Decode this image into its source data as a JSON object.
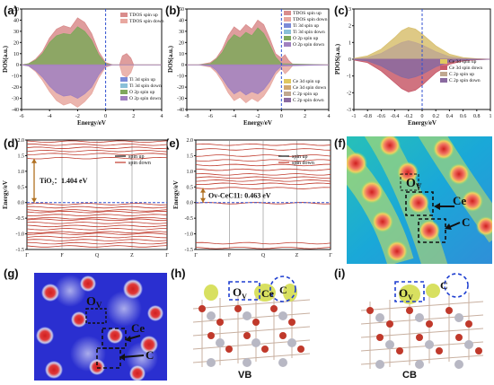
{
  "panels": {
    "a": "(a)",
    "b": "(b)",
    "c": "(c)",
    "d": "(d)",
    "e": "(e)",
    "f": "(f)",
    "g": "(g)",
    "h": "(h)",
    "i": "(i)"
  },
  "chart_data": [
    {
      "id": "a",
      "type": "area",
      "xlabel": "Energy/eV",
      "ylabel": "DOS(a.u.)",
      "xlim": [
        -6,
        4
      ],
      "ylim": [
        -40,
        50
      ],
      "xticks": [
        -6,
        -4,
        -2,
        0,
        2,
        4
      ],
      "yticks": [
        -40,
        -30,
        -20,
        -10,
        0,
        10,
        20,
        30,
        40,
        50
      ],
      "fermi": 0,
      "legend_top": [
        "TDOS spin up",
        "TDOS spin down"
      ],
      "legend_bottom": [
        "Ti 3d spin up",
        "Ti 3d spin down",
        "O 2p spin up",
        "O 2p spin down"
      ],
      "series": [
        {
          "name": "TDOS spin up",
          "color": "#d98c8c",
          "x": [
            -6,
            -5.5,
            -5,
            -4.5,
            -4,
            -3.5,
            -3,
            -2.5,
            -2,
            -1.5,
            -1,
            -0.5,
            0,
            0.5,
            1,
            1.2,
            1.5,
            1.8,
            2,
            2.5,
            3,
            3.5,
            4
          ],
          "y": [
            0,
            1,
            5,
            12,
            24,
            32,
            35,
            33,
            42,
            38,
            28,
            12,
            2,
            0,
            0,
            8,
            10,
            6,
            0,
            0,
            0,
            0,
            0
          ]
        },
        {
          "name": "O 2p spin up",
          "color": "#7fa85c",
          "x": [
            -6,
            -5.5,
            -5,
            -4.5,
            -4,
            -3.5,
            -3,
            -2.5,
            -2,
            -1.5,
            -1,
            -0.5,
            0,
            0.5,
            1,
            4
          ],
          "y": [
            0,
            1,
            4,
            10,
            20,
            26,
            28,
            27,
            34,
            30,
            22,
            9,
            1,
            0,
            0,
            0
          ]
        },
        {
          "name": "TDOS spin down",
          "color": "#e8a8a0",
          "x": [
            -6,
            -5.5,
            -5,
            -4.5,
            -4,
            -3.5,
            -3,
            -2.5,
            -2,
            -1.5,
            -1,
            -0.5,
            0,
            0.5,
            1,
            1.2,
            1.5,
            1.8,
            2,
            2.5,
            3,
            3.5,
            4
          ],
          "y": [
            0,
            -1,
            -6,
            -14,
            -24,
            -32,
            -36,
            -34,
            -38,
            -33,
            -26,
            -12,
            -2,
            0,
            0,
            -9,
            -11,
            -7,
            0,
            0,
            0,
            0,
            0
          ]
        },
        {
          "name": "O 2p spin down",
          "color": "#a080c0",
          "x": [
            -6,
            -5.5,
            -5,
            -4.5,
            -4,
            -3.5,
            -3,
            -2.5,
            -2,
            -1.5,
            -1,
            -0.5,
            0,
            0.5,
            1,
            4
          ],
          "y": [
            0,
            -1,
            -5,
            -11,
            -19,
            -25,
            -28,
            -27,
            -30,
            -26,
            -20,
            -9,
            -1,
            0,
            0,
            0
          ]
        }
      ]
    },
    {
      "id": "b",
      "type": "area",
      "xlabel": "Energy/eV",
      "ylabel": "DOS(a.u.)",
      "xlim": [
        -8,
        4
      ],
      "ylim": [
        -40,
        50
      ],
      "xticks": [
        -8,
        -6,
        -4,
        -2,
        0,
        2,
        4
      ],
      "yticks": [
        -40,
        -30,
        -20,
        -10,
        0,
        10,
        20,
        30,
        40,
        50
      ],
      "fermi": 0,
      "legend_top": [
        "TDOS spin up",
        "TDOS spin down",
        "Ti 3d spin up",
        "Ti 3d spin down",
        "O 2p spin up",
        "O 2p spin down"
      ],
      "legend_bottom": [
        "Ce 3d spin up",
        "Ce 3d spin down",
        "C 2p spin up",
        "C 2p spin down"
      ],
      "series": [
        {
          "name": "TDOS spin up",
          "color": "#d98c8c",
          "x": [
            -8,
            -7,
            -6,
            -5.5,
            -5,
            -4.5,
            -4,
            -3.5,
            -3,
            -2.5,
            -2,
            -1.5,
            -1,
            -0.5,
            0,
            0.3,
            0.6,
            1,
            1.5,
            2,
            4
          ],
          "y": [
            0,
            0,
            2,
            6,
            14,
            26,
            34,
            30,
            36,
            32,
            40,
            36,
            24,
            10,
            6,
            9,
            4,
            0,
            0,
            0,
            0
          ]
        },
        {
          "name": "O 2p spin up",
          "color": "#7fa85c",
          "x": [
            -8,
            -7,
            -6,
            -5.5,
            -5,
            -4.5,
            -4,
            -3.5,
            -3,
            -2.5,
            -2,
            -1.5,
            -1,
            -0.5,
            0,
            4
          ],
          "y": [
            0,
            0,
            1,
            5,
            11,
            21,
            27,
            24,
            29,
            26,
            33,
            28,
            18,
            7,
            1,
            0
          ]
        },
        {
          "name": "TDOS spin down",
          "color": "#e8a8a0",
          "x": [
            -8,
            -7,
            -6,
            -5.5,
            -5,
            -4.5,
            -4,
            -3.5,
            -3,
            -2.5,
            -2,
            -1.5,
            -1,
            -0.5,
            0,
            0.3,
            0.6,
            1,
            1.5,
            2,
            4
          ],
          "y": [
            0,
            0,
            -2,
            -7,
            -15,
            -25,
            -32,
            -29,
            -34,
            -30,
            -33,
            -28,
            -20,
            -9,
            -3,
            -8,
            -5,
            0,
            0,
            0,
            0
          ]
        },
        {
          "name": "O 2p spin down",
          "color": "#a080c0",
          "x": [
            -8,
            -7,
            -6,
            -5.5,
            -5,
            -4.5,
            -4,
            -3.5,
            -3,
            -2.5,
            -2,
            -1.5,
            -1,
            -0.5,
            0,
            4
          ],
          "y": [
            0,
            0,
            -1,
            -5,
            -12,
            -20,
            -26,
            -23,
            -27,
            -24,
            -26,
            -22,
            -15,
            -6,
            -1,
            0
          ]
        }
      ]
    },
    {
      "id": "c",
      "type": "area",
      "xlabel": "Energy/eV",
      "ylabel": "PDOS(a.u.)",
      "xlim": [
        -1.0,
        1.0
      ],
      "ylim": [
        -3,
        3
      ],
      "xticks": [
        -1.0,
        -0.8,
        -0.6,
        -0.4,
        -0.2,
        0.0,
        0.2,
        0.4,
        0.6,
        0.8,
        1.0
      ],
      "yticks": [
        -3,
        -2,
        -1,
        0,
        1,
        2,
        3
      ],
      "fermi": 0,
      "legend": [
        "Ce 3d spin up",
        "Ce 3d spin down",
        "C 2p spin up",
        "C 2p spin down"
      ],
      "series": [
        {
          "name": "Ce 3d spin up",
          "color": "#d8c070",
          "x": [
            -1,
            -0.8,
            -0.6,
            -0.4,
            -0.3,
            -0.2,
            -0.1,
            0,
            0.2,
            0.4,
            0.6,
            0.8,
            1
          ],
          "y": [
            0.05,
            0.2,
            0.6,
            1.3,
            1.7,
            1.9,
            1.8,
            1.5,
            0.8,
            0.3,
            0.1,
            0.03,
            0
          ]
        },
        {
          "name": "C 2p spin up",
          "color": "#c0a890",
          "x": [
            -1,
            -0.8,
            -0.6,
            -0.4,
            -0.3,
            -0.2,
            -0.1,
            0,
            0.2,
            0.4,
            0.6,
            0.8,
            1
          ],
          "y": [
            0.02,
            0.1,
            0.35,
            0.8,
            1.0,
            1.1,
            1.0,
            0.85,
            0.45,
            0.15,
            0.05,
            0.02,
            0
          ]
        },
        {
          "name": "Ce 3d spin down",
          "color": "#c85a6a",
          "x": [
            -1,
            -0.8,
            -0.6,
            -0.4,
            -0.3,
            -0.2,
            -0.1,
            0,
            0.2,
            0.4,
            0.6,
            0.8,
            1
          ],
          "y": [
            -0.05,
            -0.2,
            -0.7,
            -1.4,
            -1.75,
            -1.95,
            -1.85,
            -1.55,
            -0.8,
            -0.3,
            -0.1,
            -0.03,
            0
          ]
        },
        {
          "name": "C 2p spin down",
          "color": "#8a6aa0",
          "x": [
            -1,
            -0.8,
            -0.6,
            -0.4,
            -0.3,
            -0.2,
            -0.1,
            0,
            0.2,
            0.4,
            0.6,
            0.8,
            1
          ],
          "y": [
            -0.02,
            -0.1,
            -0.4,
            -0.85,
            -1.05,
            -1.15,
            -1.05,
            -0.9,
            -0.45,
            -0.15,
            -0.05,
            -0.02,
            0
          ]
        }
      ]
    },
    {
      "id": "d",
      "type": "line",
      "ylabel": "Energy/eV",
      "ylim": [
        -1.5,
        2.0
      ],
      "yticks": [
        -1.5,
        -1.0,
        -0.5,
        0.0,
        0.5,
        1.0,
        1.5,
        2.0
      ],
      "xticks": [
        "Γ",
        "F",
        "Q",
        "Z",
        "Γ"
      ],
      "legend": [
        "spin up",
        "spin down"
      ],
      "annotation": "TiO₂：1.404 eV",
      "gap": [
        0.0,
        1.404
      ],
      "valence_levels": [
        -0.05,
        -0.15,
        -0.25,
        -0.3,
        -0.4,
        -0.5,
        -0.55,
        -0.65,
        -0.75,
        -0.85,
        -0.95,
        -1.0,
        -1.1,
        -1.2,
        -1.3,
        -1.4
      ],
      "conduction_levels": [
        1.42,
        1.55,
        1.65,
        1.75,
        1.85,
        1.95
      ]
    },
    {
      "id": "e",
      "type": "line",
      "ylabel": "Energy/eV",
      "ylim": [
        -1.5,
        2.0
      ],
      "yticks": [
        -1.5,
        -1.0,
        -0.5,
        0.0,
        0.5,
        1.0,
        1.5,
        2.0
      ],
      "xticks": [
        "Γ",
        "F",
        "Q",
        "Z",
        "Γ"
      ],
      "legend": [
        "spin up",
        "spin down"
      ],
      "annotation": "Ov-CeC11:  0.463 eV",
      "gap": [
        0.0,
        0.463
      ],
      "valence_levels": [
        -0.02,
        -1.3,
        -1.45
      ],
      "conduction_levels": [
        0.463,
        0.6,
        0.7,
        0.8,
        0.9,
        1.05,
        1.2,
        1.35,
        1.5,
        1.7,
        1.85
      ]
    }
  ],
  "images": {
    "f": {
      "labels": {
        "ov": "O",
        "ov_sub": "V",
        "ce": "Ce",
        "c": "C"
      }
    },
    "g": {
      "labels": {
        "ov": "O",
        "ov_sub": "V",
        "ce": "Ce",
        "c": "C"
      }
    },
    "h": {
      "labels": {
        "ov": "O",
        "ov_sub": "V",
        "ce": "Ce",
        "c": "C"
      },
      "caption": "VB"
    },
    "i": {
      "labels": {
        "ov": "O",
        "ov_sub": "V",
        "c": "C"
      },
      "caption": "CB"
    }
  }
}
